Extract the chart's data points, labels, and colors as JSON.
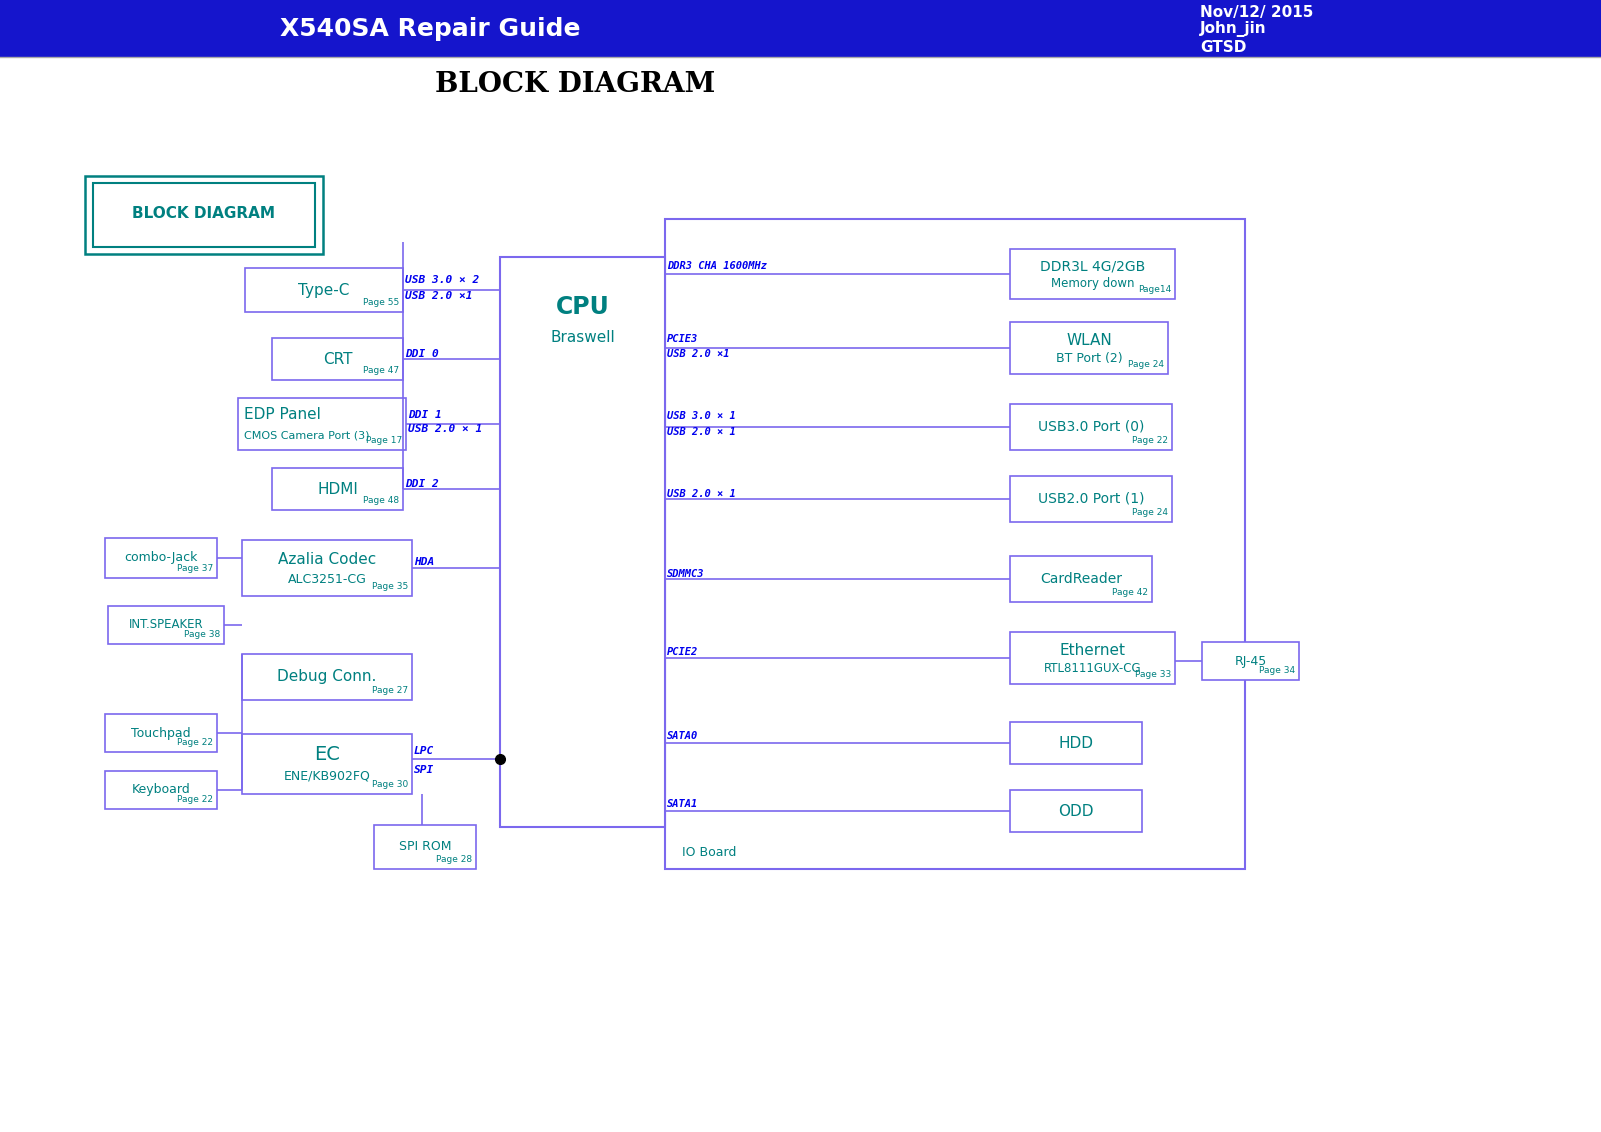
{
  "title": "BLOCK DIAGRAM",
  "header_title": "X540SA Repair Guide",
  "header_date": "Nov/12/ 2015",
  "header_author": "John_jin",
  "header_org": "GTSD",
  "header_bg": "#1515CC",
  "header_text_color": "#FFFFFF",
  "page_bg": "#FFFFFF",
  "title_color": "#000000",
  "box_edge_color": "#7B68EE",
  "box_text_color": "#008080",
  "signal_color": "#0000EE",
  "page_note_color": "#008080",
  "corner_box_edge": "#008080",
  "corner_box_text": "#008080"
}
